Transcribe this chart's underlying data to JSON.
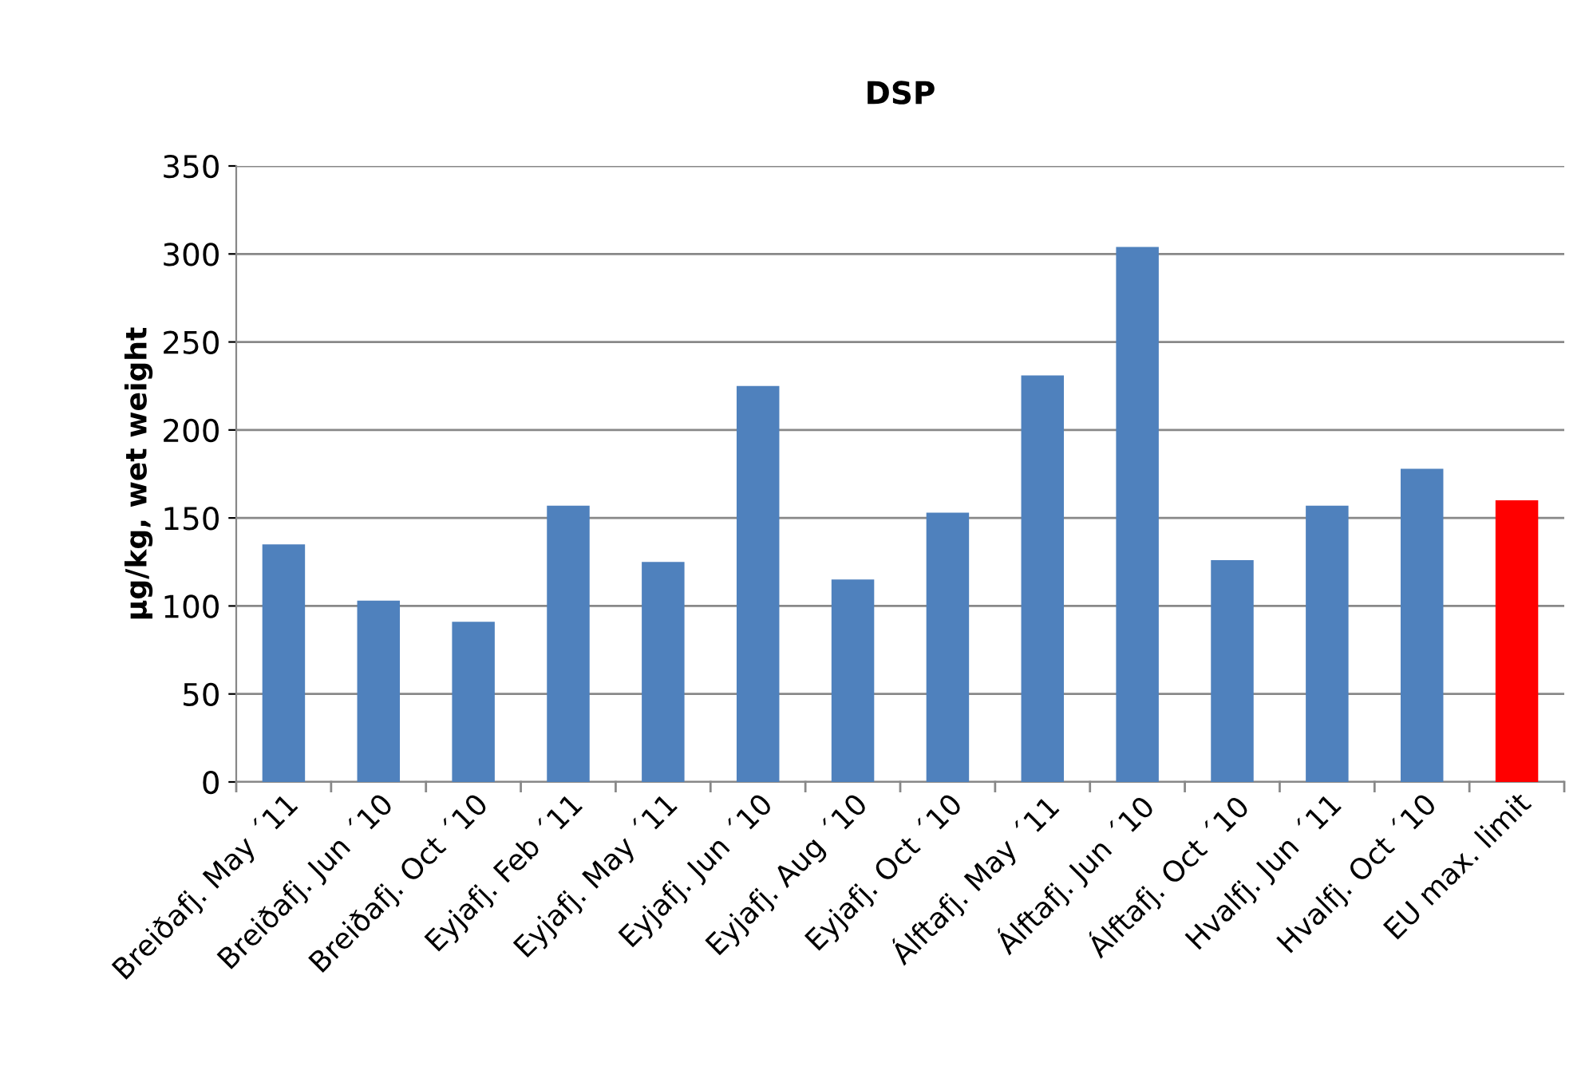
{
  "chart_data": {
    "type": "bar",
    "title": "DSP",
    "ylabel": "µg/kg, wet weight",
    "categories": [
      "Breiðafj. May ´11",
      "Breiðafj. Jun ´10",
      "Breiðafj. Oct ´10",
      "Eyjafj. Feb ´11",
      "Eyjafj. May ´11",
      "Eyjafj. Jun ´10",
      "Eyjafj. Aug ´10",
      "Eyjafj. Oct ´10",
      "Álftafj. May ´11",
      "Álftafj. Jun ´10",
      "Álftafj. Oct ´10",
      "Hvalfj. Jun ´11",
      "Hvalfj. Oct ´10",
      "EU max. limit"
    ],
    "values": [
      135,
      103,
      91,
      157,
      125,
      225,
      115,
      153,
      231,
      304,
      126,
      157,
      178,
      160
    ],
    "colors": [
      "#4f81bd",
      "#4f81bd",
      "#4f81bd",
      "#4f81bd",
      "#4f81bd",
      "#4f81bd",
      "#4f81bd",
      "#4f81bd",
      "#4f81bd",
      "#4f81bd",
      "#4f81bd",
      "#4f81bd",
      "#4f81bd",
      "#ff0000"
    ],
    "ylim": [
      0,
      350
    ],
    "yticks": [
      0,
      50,
      100,
      150,
      200,
      250,
      300,
      350
    ],
    "grid": "y",
    "legend": false
  }
}
